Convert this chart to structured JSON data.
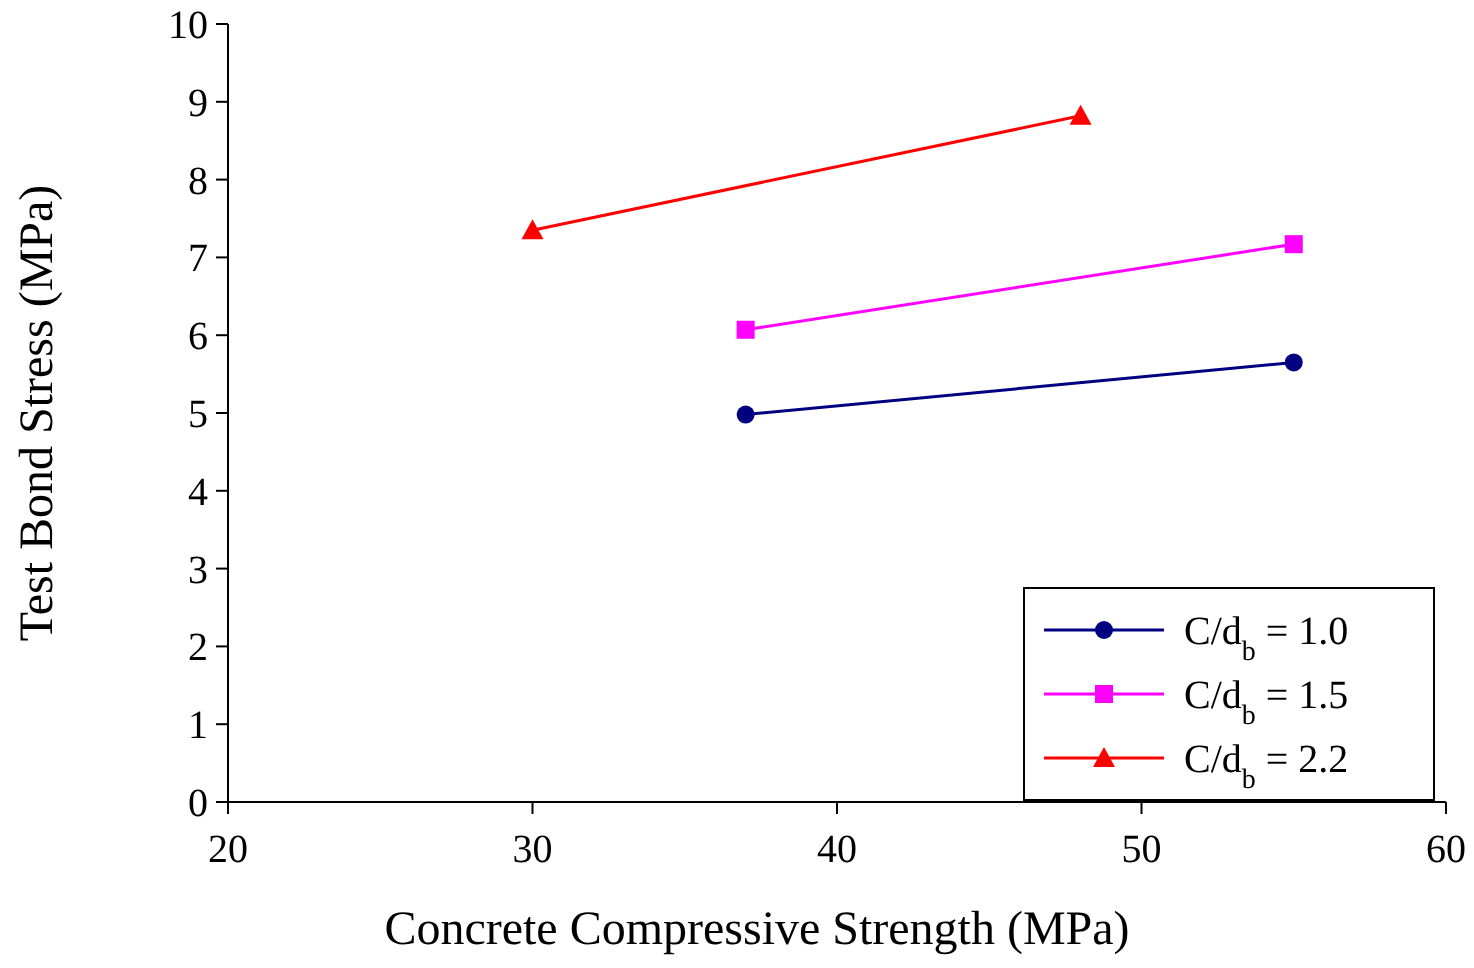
{
  "chart_data": {
    "type": "line",
    "xlabel": "Concrete Compressive Strength (MPa)",
    "ylabel": "Test Bond Stress (MPa)",
    "xlim": [
      20,
      60
    ],
    "xticks": [
      20,
      30,
      40,
      50,
      60
    ],
    "ylim": [
      0,
      10
    ],
    "yticks": [
      0,
      1,
      2,
      3,
      4,
      5,
      6,
      7,
      8,
      9,
      10
    ],
    "grid": false,
    "legend": "bottom right",
    "line_style": "solid",
    "series": [
      {
        "name": "C/d$_{b}$ = 1.0",
        "color": "#000080",
        "marker": "circle",
        "x": [
          37,
          55
        ],
        "values": [
          4.98,
          5.65
        ]
      },
      {
        "name": "C/d$_{b}$ = 1.5",
        "color": "#ff00ff",
        "marker": "square",
        "x": [
          37,
          55
        ],
        "values": [
          6.07,
          7.17
        ]
      },
      {
        "name": "C/d$_{b}$ = 2.2",
        "color": "#ff0000",
        "marker": "triangle",
        "x": [
          30,
          48
        ],
        "values": [
          7.35,
          8.82
        ]
      }
    ]
  }
}
